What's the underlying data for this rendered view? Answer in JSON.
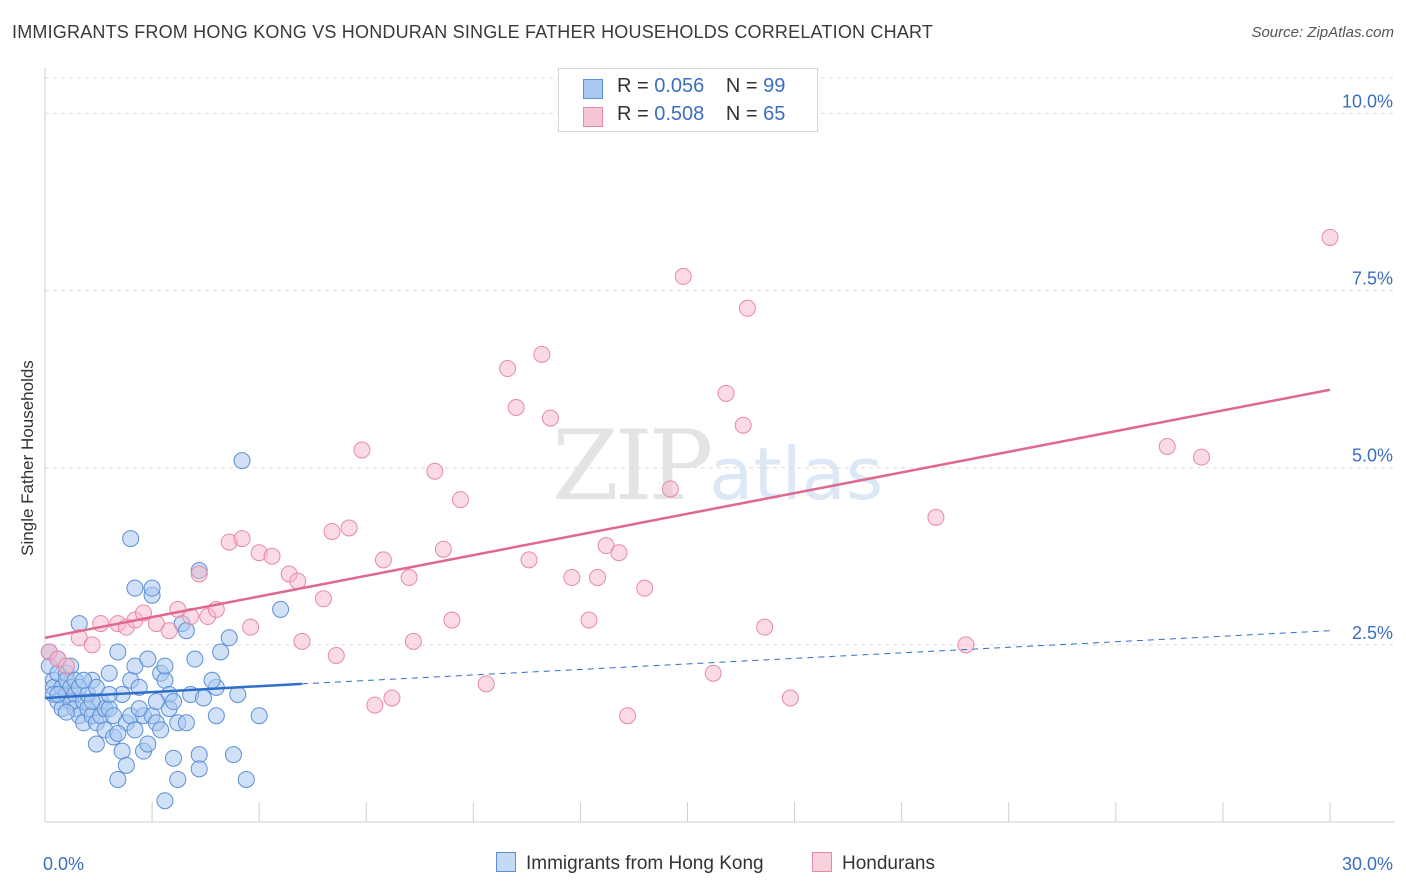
{
  "title": "IMMIGRANTS FROM HONG KONG VS HONDURAN SINGLE FATHER HOUSEHOLDS CORRELATION CHART",
  "source": "Source: ZipAtlas.com",
  "watermark": {
    "zip": "ZIP",
    "atlas": "atlas"
  },
  "legend_top": {
    "rows": [
      {
        "r_label": "R = ",
        "r_value": "0.056",
        "n_label": "N = ",
        "n_value": "99"
      },
      {
        "r_label": "R = ",
        "r_value": "0.508",
        "n_label": "N = ",
        "n_value": "65"
      }
    ]
  },
  "colors": {
    "blue_fill": "#a9c8f0",
    "blue_stroke": "#5b8fd6",
    "blue_line": "#2f6fc9",
    "pink_fill": "#f5b8ca",
    "pink_stroke": "#e889a6",
    "pink_line": "#e06890",
    "axis_text": "#3a6ec2",
    "grid": "#dcdcdc"
  },
  "chart_data": {
    "type": "scatter",
    "title": "IMMIGRANTS FROM HONG KONG VS HONDURAN SINGLE FATHER HOUSEHOLDS CORRELATION CHART",
    "xlabel": "",
    "ylabel": "Single Father Households",
    "xlim": [
      0,
      30
    ],
    "ylim": [
      0,
      10.5
    ],
    "x_tick_labels": [
      "0.0%",
      "30.0%"
    ],
    "y_tick_labels": [
      "2.5%",
      "5.0%",
      "7.5%",
      "10.0%"
    ],
    "y_ticks": [
      2.5,
      5.0,
      7.5,
      10.0
    ],
    "series": [
      {
        "name": "Immigrants from Hong Kong",
        "color": "blue",
        "trend": {
          "x0": 0,
          "y0": 1.75,
          "x1": 6.0,
          "y1": 1.95,
          "dashed_to_x": 30,
          "dashed_to_y": 2.7
        },
        "points": [
          [
            0.1,
            2.4
          ],
          [
            0.1,
            2.2
          ],
          [
            0.2,
            2.0
          ],
          [
            0.2,
            1.9
          ],
          [
            0.2,
            1.8
          ],
          [
            0.3,
            2.3
          ],
          [
            0.3,
            1.7
          ],
          [
            0.3,
            2.1
          ],
          [
            0.4,
            1.9
          ],
          [
            0.4,
            1.6
          ],
          [
            0.5,
            2.1
          ],
          [
            0.5,
            1.8
          ],
          [
            0.5,
            2.0
          ],
          [
            0.6,
            1.9
          ],
          [
            0.6,
            1.7
          ],
          [
            0.6,
            2.2
          ],
          [
            0.7,
            1.8
          ],
          [
            0.7,
            1.6
          ],
          [
            0.7,
            2.0
          ],
          [
            0.8,
            1.9
          ],
          [
            0.8,
            1.5
          ],
          [
            0.8,
            2.8
          ],
          [
            0.9,
            1.7
          ],
          [
            0.9,
            1.4
          ],
          [
            1.0,
            1.8
          ],
          [
            1.0,
            1.6
          ],
          [
            1.1,
            2.0
          ],
          [
            1.1,
            1.5
          ],
          [
            1.2,
            1.9
          ],
          [
            1.2,
            1.4
          ],
          [
            1.2,
            1.1
          ],
          [
            1.3,
            1.7
          ],
          [
            1.3,
            1.5
          ],
          [
            1.4,
            1.6
          ],
          [
            1.4,
            1.3
          ],
          [
            1.5,
            2.1
          ],
          [
            1.5,
            1.6
          ],
          [
            1.6,
            1.5
          ],
          [
            1.6,
            1.2
          ],
          [
            1.7,
            2.4
          ],
          [
            1.7,
            0.6
          ],
          [
            1.8,
            1.8
          ],
          [
            1.8,
            1.0
          ],
          [
            1.9,
            1.4
          ],
          [
            1.9,
            0.8
          ],
          [
            2.0,
            2.0
          ],
          [
            2.0,
            1.5
          ],
          [
            2.0,
            4.0
          ],
          [
            2.1,
            1.3
          ],
          [
            2.1,
            2.2
          ],
          [
            2.1,
            3.3
          ],
          [
            2.2,
            1.9
          ],
          [
            2.3,
            1.5
          ],
          [
            2.3,
            1.0
          ],
          [
            2.4,
            2.3
          ],
          [
            2.4,
            1.1
          ],
          [
            2.5,
            3.2
          ],
          [
            2.5,
            1.5
          ],
          [
            2.5,
            3.3
          ],
          [
            2.6,
            1.4
          ],
          [
            2.7,
            2.1
          ],
          [
            2.7,
            1.3
          ],
          [
            2.8,
            2.0
          ],
          [
            2.8,
            2.2
          ],
          [
            2.8,
            0.3
          ],
          [
            2.9,
            1.8
          ],
          [
            2.9,
            1.6
          ],
          [
            3.0,
            1.7
          ],
          [
            3.0,
            0.9
          ],
          [
            3.1,
            1.4
          ],
          [
            3.1,
            0.6
          ],
          [
            3.2,
            2.8
          ],
          [
            3.3,
            1.4
          ],
          [
            3.4,
            1.8
          ],
          [
            3.5,
            2.3
          ],
          [
            3.6,
            0.95
          ],
          [
            3.6,
            0.75
          ],
          [
            3.6,
            3.55
          ],
          [
            3.7,
            1.75
          ],
          [
            4.0,
            1.5
          ],
          [
            4.0,
            1.9
          ],
          [
            4.1,
            2.4
          ],
          [
            4.3,
            2.6
          ],
          [
            4.4,
            0.95
          ],
          [
            4.5,
            1.8
          ],
          [
            4.6,
            5.1
          ],
          [
            4.7,
            0.6
          ],
          [
            5.0,
            1.5
          ],
          [
            5.5,
            3.0
          ],
          [
            0.3,
            1.8
          ],
          [
            0.9,
            2.0
          ],
          [
            1.5,
            1.8
          ],
          [
            2.2,
            1.6
          ],
          [
            3.3,
            2.7
          ],
          [
            0.5,
            1.55
          ],
          [
            1.1,
            1.7
          ],
          [
            1.7,
            1.25
          ],
          [
            2.6,
            1.7
          ],
          [
            3.9,
            2.0
          ]
        ]
      },
      {
        "name": "Hondurans",
        "color": "pink",
        "trend": {
          "x0": 0,
          "y0": 2.6,
          "x1": 30,
          "y1": 6.1
        },
        "points": [
          [
            0.1,
            2.4
          ],
          [
            0.3,
            2.3
          ],
          [
            0.5,
            2.2
          ],
          [
            0.8,
            2.6
          ],
          [
            1.1,
            2.5
          ],
          [
            1.3,
            2.8
          ],
          [
            1.7,
            2.8
          ],
          [
            1.9,
            2.75
          ],
          [
            2.1,
            2.85
          ],
          [
            2.3,
            2.95
          ],
          [
            2.6,
            2.8
          ],
          [
            2.9,
            2.7
          ],
          [
            3.1,
            3.0
          ],
          [
            3.4,
            2.9
          ],
          [
            3.6,
            3.5
          ],
          [
            3.8,
            2.9
          ],
          [
            4.0,
            3.0
          ],
          [
            4.3,
            3.95
          ],
          [
            4.6,
            4.0
          ],
          [
            4.8,
            2.75
          ],
          [
            5.0,
            3.8
          ],
          [
            5.3,
            3.75
          ],
          [
            5.7,
            3.5
          ],
          [
            5.9,
            3.4
          ],
          [
            6.0,
            2.55
          ],
          [
            6.5,
            3.15
          ],
          [
            6.7,
            4.1
          ],
          [
            6.8,
            2.35
          ],
          [
            7.1,
            4.15
          ],
          [
            7.4,
            5.25
          ],
          [
            7.7,
            1.65
          ],
          [
            7.9,
            3.7
          ],
          [
            8.1,
            1.75
          ],
          [
            8.5,
            3.45
          ],
          [
            8.6,
            2.55
          ],
          [
            9.1,
            4.95
          ],
          [
            9.3,
            3.85
          ],
          [
            9.5,
            2.85
          ],
          [
            9.7,
            4.55
          ],
          [
            10.3,
            1.95
          ],
          [
            10.8,
            6.4
          ],
          [
            11.0,
            5.85
          ],
          [
            11.3,
            3.7
          ],
          [
            11.6,
            6.6
          ],
          [
            11.8,
            5.7
          ],
          [
            12.3,
            3.45
          ],
          [
            12.7,
            2.85
          ],
          [
            12.9,
            3.45
          ],
          [
            13.1,
            3.9
          ],
          [
            13.4,
            3.8
          ],
          [
            13.6,
            1.5
          ],
          [
            14.0,
            3.3
          ],
          [
            14.6,
            4.7
          ],
          [
            14.9,
            7.7
          ],
          [
            15.6,
            2.1
          ],
          [
            15.9,
            6.05
          ],
          [
            16.3,
            5.6
          ],
          [
            16.4,
            7.25
          ],
          [
            16.8,
            2.75
          ],
          [
            17.4,
            1.75
          ],
          [
            20.8,
            4.3
          ],
          [
            21.5,
            2.5
          ],
          [
            26.2,
            5.3
          ],
          [
            27.0,
            5.15
          ],
          [
            30.0,
            8.25
          ]
        ]
      }
    ]
  }
}
